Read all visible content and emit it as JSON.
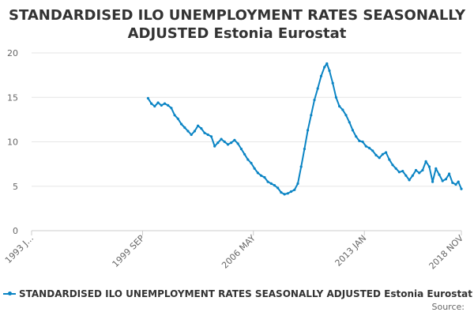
{
  "chart_data": {
    "type": "line",
    "title": "STANDARDISED ILO UNEMPLOYMENT RATES SEASONALLY ADJUSTED Estonia Eurostat",
    "title_lines": [
      "STANDARDISED ILO UNEMPLOYMENT RATES SEASONALLY",
      "ADJUSTED Estonia Eurostat"
    ],
    "xlabel": "",
    "ylabel": "",
    "ylim": [
      0,
      20
    ],
    "yticks": [
      0,
      5,
      10,
      15,
      20
    ],
    "xlim": [
      1993.0,
      2018.83
    ],
    "xticks": [
      {
        "label": "1993 J...",
        "value": 1993.0
      },
      {
        "label": "1999 SEP",
        "value": 1999.67
      },
      {
        "label": "2006 MAY",
        "value": 2006.33
      },
      {
        "label": "2013 JAN",
        "value": 2013.0
      },
      {
        "label": "2018 NOV",
        "value": 2018.83
      }
    ],
    "grid": true,
    "legend_position": "bottom",
    "series": [
      {
        "name": "STANDARDISED ILO UNEMPLOYMENT RATES SEASONALLY ADJUSTED Estonia Eurostat",
        "color": "#0a84c4",
        "points": [
          [
            2000.0,
            14.9
          ],
          [
            2000.2,
            14.3
          ],
          [
            2000.4,
            14.0
          ],
          [
            2000.6,
            14.4
          ],
          [
            2000.8,
            14.1
          ],
          [
            2001.0,
            14.3
          ],
          [
            2001.2,
            14.1
          ],
          [
            2001.4,
            13.8
          ],
          [
            2001.6,
            13.0
          ],
          [
            2001.8,
            12.6
          ],
          [
            2002.0,
            12.0
          ],
          [
            2002.2,
            11.6
          ],
          [
            2002.4,
            11.2
          ],
          [
            2002.6,
            10.8
          ],
          [
            2002.8,
            11.2
          ],
          [
            2003.0,
            11.8
          ],
          [
            2003.2,
            11.5
          ],
          [
            2003.4,
            11.0
          ],
          [
            2003.6,
            10.8
          ],
          [
            2003.8,
            10.6
          ],
          [
            2004.0,
            9.5
          ],
          [
            2004.2,
            9.9
          ],
          [
            2004.4,
            10.3
          ],
          [
            2004.6,
            10.0
          ],
          [
            2004.8,
            9.7
          ],
          [
            2005.0,
            9.9
          ],
          [
            2005.2,
            10.2
          ],
          [
            2005.4,
            9.8
          ],
          [
            2005.6,
            9.2
          ],
          [
            2005.8,
            8.6
          ],
          [
            2006.0,
            8.0
          ],
          [
            2006.2,
            7.6
          ],
          [
            2006.4,
            7.0
          ],
          [
            2006.6,
            6.5
          ],
          [
            2006.8,
            6.2
          ],
          [
            2007.0,
            6.0
          ],
          [
            2007.2,
            5.5
          ],
          [
            2007.4,
            5.3
          ],
          [
            2007.6,
            5.1
          ],
          [
            2007.8,
            4.8
          ],
          [
            2008.0,
            4.3
          ],
          [
            2008.2,
            4.1
          ],
          [
            2008.4,
            4.2
          ],
          [
            2008.6,
            4.4
          ],
          [
            2008.8,
            4.6
          ],
          [
            2009.0,
            5.3
          ],
          [
            2009.2,
            7.2
          ],
          [
            2009.4,
            9.2
          ],
          [
            2009.6,
            11.3
          ],
          [
            2009.8,
            13.0
          ],
          [
            2010.0,
            14.7
          ],
          [
            2010.2,
            16.0
          ],
          [
            2010.4,
            17.4
          ],
          [
            2010.6,
            18.4
          ],
          [
            2010.75,
            18.8
          ],
          [
            2010.9,
            18.0
          ],
          [
            2011.1,
            16.6
          ],
          [
            2011.3,
            15.0
          ],
          [
            2011.5,
            14.0
          ],
          [
            2011.7,
            13.6
          ],
          [
            2011.9,
            13.0
          ],
          [
            2012.1,
            12.2
          ],
          [
            2012.3,
            11.3
          ],
          [
            2012.5,
            10.6
          ],
          [
            2012.7,
            10.1
          ],
          [
            2012.9,
            10.0
          ],
          [
            2013.1,
            9.5
          ],
          [
            2013.3,
            9.3
          ],
          [
            2013.5,
            9.0
          ],
          [
            2013.7,
            8.5
          ],
          [
            2013.9,
            8.2
          ],
          [
            2014.1,
            8.6
          ],
          [
            2014.3,
            8.8
          ],
          [
            2014.5,
            8.0
          ],
          [
            2014.7,
            7.4
          ],
          [
            2014.9,
            7.0
          ],
          [
            2015.1,
            6.6
          ],
          [
            2015.3,
            6.7
          ],
          [
            2015.5,
            6.2
          ],
          [
            2015.7,
            5.7
          ],
          [
            2015.9,
            6.2
          ],
          [
            2016.1,
            6.8
          ],
          [
            2016.3,
            6.5
          ],
          [
            2016.5,
            6.8
          ],
          [
            2016.7,
            7.8
          ],
          [
            2016.9,
            7.2
          ],
          [
            2017.1,
            5.5
          ],
          [
            2017.3,
            7.0
          ],
          [
            2017.5,
            6.3
          ],
          [
            2017.7,
            5.6
          ],
          [
            2017.9,
            5.8
          ],
          [
            2018.1,
            6.4
          ],
          [
            2018.3,
            5.4
          ],
          [
            2018.5,
            5.2
          ],
          [
            2018.65,
            5.5
          ],
          [
            2018.83,
            4.7
          ]
        ]
      }
    ]
  },
  "legend": {
    "label": "STANDARDISED ILO UNEMPLOYMENT RATES SEASONALLY ADJUSTED Estonia Eurostat"
  },
  "source": {
    "label": "Source:"
  }
}
